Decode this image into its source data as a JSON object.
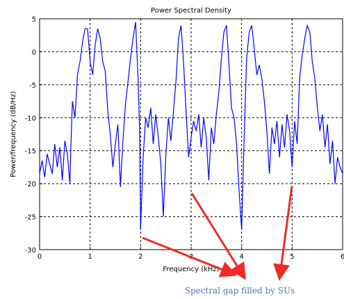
{
  "chart_data": {
    "type": "line",
    "title": "Power Spectral Density",
    "xlabel": "Frequency (kHz)",
    "ylabel": "Power/frequency (dB/Hz)",
    "xlim": [
      0,
      6
    ],
    "ylim": [
      -30,
      5
    ],
    "xticks": [
      0,
      1,
      2,
      3,
      4,
      5,
      6
    ],
    "yticks": [
      -30,
      -25,
      -20,
      -15,
      -10,
      -5,
      0,
      5
    ],
    "grid": true,
    "series": [
      {
        "color": "#0000ff",
        "x": [
          0.0,
          0.05,
          0.1,
          0.15,
          0.2,
          0.25,
          0.3,
          0.35,
          0.4,
          0.45,
          0.5,
          0.55,
          0.6,
          0.62,
          0.65,
          0.7,
          0.75,
          0.8,
          0.85,
          0.9,
          0.95,
          1.0,
          1.05,
          1.1,
          1.15,
          1.2,
          1.25,
          1.3,
          1.35,
          1.4,
          1.45,
          1.5,
          1.55,
          1.6,
          1.65,
          1.7,
          1.75,
          1.8,
          1.85,
          1.9,
          1.95,
          1.98,
          2.0,
          2.05,
          2.1,
          2.15,
          2.2,
          2.25,
          2.3,
          2.35,
          2.4,
          2.45,
          2.5,
          2.55,
          2.6,
          2.65,
          2.7,
          2.75,
          2.8,
          2.85,
          2.9,
          2.95,
          3.0,
          3.05,
          3.1,
          3.15,
          3.2,
          3.25,
          3.3,
          3.35,
          3.4,
          3.45,
          3.5,
          3.55,
          3.6,
          3.65,
          3.7,
          3.75,
          3.8,
          3.85,
          3.9,
          3.95,
          4.0,
          4.05,
          4.1,
          4.15,
          4.2,
          4.25,
          4.3,
          4.35,
          4.4,
          4.45,
          4.5,
          4.55,
          4.6,
          4.65,
          4.7,
          4.75,
          4.8,
          4.85,
          4.9,
          4.95,
          5.0,
          5.05,
          5.1,
          5.15,
          5.2,
          5.25,
          5.3,
          5.35,
          5.4,
          5.45,
          5.5,
          5.55,
          5.6,
          5.65,
          5.7,
          5.75,
          5.8,
          5.85,
          5.9,
          5.95,
          6.0
        ],
        "y": [
          -18.5,
          -16.5,
          -19.0,
          -15.5,
          -17.0,
          -18.5,
          -14.0,
          -17.5,
          -14.5,
          -19.5,
          -13.5,
          -15.5,
          -20.0,
          -14.0,
          -7.5,
          -10.0,
          -3.5,
          -1.5,
          1.5,
          3.5,
          3.5,
          -1.5,
          -3.5,
          1.0,
          3.5,
          2.0,
          -1.5,
          -3.0,
          -9.0,
          -12.5,
          -17.5,
          -14.0,
          -11.0,
          -20.5,
          -13.5,
          -8.0,
          -4.5,
          -1.0,
          2.0,
          4.5,
          -4.0,
          -12.0,
          -27.0,
          -16.0,
          -10.0,
          -11.5,
          -8.5,
          -14.0,
          -9.5,
          -13.0,
          -17.0,
          -25.0,
          -15.5,
          -10.0,
          -13.5,
          -9.0,
          -4.5,
          2.0,
          4.0,
          -1.5,
          -9.0,
          -16.0,
          -13.0,
          -10.5,
          -12.0,
          -9.5,
          -14.5,
          -10.0,
          -13.0,
          -19.5,
          -11.5,
          -14.0,
          -9.5,
          -6.0,
          -1.0,
          3.0,
          4.0,
          -2.0,
          -8.5,
          -10.0,
          -14.0,
          -21.0,
          -27.0,
          -13.0,
          -1.0,
          3.0,
          4.0,
          0.5,
          -3.5,
          -2.0,
          -4.0,
          -7.5,
          -12.0,
          -18.5,
          -11.5,
          -14.0,
          -10.5,
          -16.0,
          -11.0,
          -14.5,
          -9.5,
          -12.0,
          -17.5,
          -10.5,
          -14.0,
          -4.0,
          -0.5,
          2.0,
          4.0,
          3.0,
          -1.5,
          -4.0,
          -8.5,
          -12.0,
          -9.5,
          -14.5,
          -11.0,
          -17.0,
          -13.5,
          -20.0,
          -16.0,
          -17.5,
          -18.5
        ]
      }
    ]
  },
  "annotation": {
    "text": "Spectral  gap  filled by SUs",
    "arrow_color": "#ee2b24",
    "text_color": "#4f73b8"
  }
}
